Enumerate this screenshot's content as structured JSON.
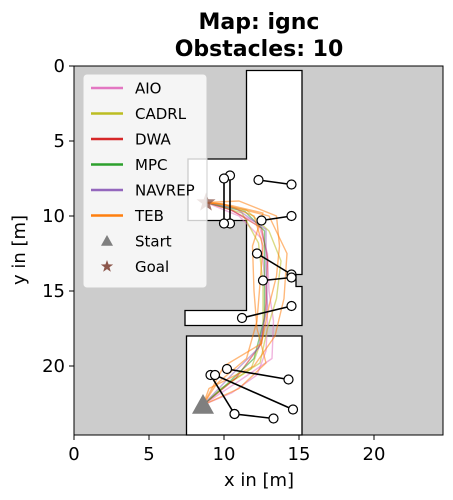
{
  "chart_data": {
    "type": "line",
    "title_line1": "Map: ignc",
    "title_line2": "Obstacles: 10",
    "xlabel": "x in [m]",
    "ylabel": "y in [m]",
    "xlim": [
      0,
      24.6
    ],
    "ylim": [
      24.6,
      0
    ],
    "y_inverted": true,
    "xticks": [
      0,
      5,
      10,
      15,
      20
    ],
    "yticks": [
      0,
      5,
      10,
      15,
      20
    ],
    "background_color": "#cccccc",
    "free_space_color": "#ffffff",
    "free_space_polygon": [
      [
        11.5,
        0.3
      ],
      [
        15.2,
        0.3
      ],
      [
        15.2,
        13.9
      ],
      [
        14.8,
        13.9
      ],
      [
        14.8,
        14.7
      ],
      [
        15.2,
        14.7
      ],
      [
        15.2,
        17.3
      ],
      [
        7.4,
        17.3
      ],
      [
        7.4,
        16.3
      ],
      [
        11.5,
        16.3
      ],
      [
        11.5,
        10.3
      ],
      [
        7.6,
        10.3
      ],
      [
        7.6,
        6.2
      ],
      [
        11.5,
        6.2
      ]
    ],
    "free_space_polygon_2": [
      [
        7.5,
        18.0
      ],
      [
        15.2,
        18.0
      ],
      [
        15.2,
        24.6
      ],
      [
        7.5,
        24.6
      ]
    ],
    "legend": [
      {
        "label": "AIO",
        "color": "#e377c2",
        "marker": "line"
      },
      {
        "label": "CADRL",
        "color": "#bcbd22",
        "marker": "line"
      },
      {
        "label": "DWA",
        "color": "#d62728",
        "marker": "line"
      },
      {
        "label": "MPC",
        "color": "#2ca02c",
        "marker": "line"
      },
      {
        "label": "NAVREP",
        "color": "#9467bd",
        "marker": "line"
      },
      {
        "label": "TEB",
        "color": "#ff7f0e",
        "marker": "line"
      },
      {
        "label": "Start",
        "color": "#7f7f7f",
        "marker": "triangle"
      },
      {
        "label": "Goal",
        "color": "#8c564b",
        "marker": "star"
      }
    ],
    "start": {
      "x": 8.6,
      "y": 22.6
    },
    "goal": {
      "x": 8.8,
      "y": 9.1
    },
    "series": [
      {
        "name": "AIO",
        "color": "#e377c2",
        "points": [
          [
            8.6,
            22.6
          ],
          [
            10.5,
            21.8
          ],
          [
            12.2,
            20.6
          ],
          [
            12.8,
            19.0
          ],
          [
            12.9,
            17.0
          ],
          [
            12.8,
            15.0
          ],
          [
            12.6,
            13.0
          ],
          [
            12.5,
            11.5
          ],
          [
            11.0,
            10.0
          ],
          [
            8.8,
            9.1
          ]
        ]
      },
      {
        "name": "AIO",
        "color": "#e377c2",
        "points": [
          [
            8.6,
            22.6
          ],
          [
            11.0,
            21.0
          ],
          [
            13.2,
            19.5
          ],
          [
            13.3,
            17.0
          ],
          [
            13.0,
            15.0
          ],
          [
            12.9,
            12.5
          ],
          [
            12.3,
            10.5
          ],
          [
            10.0,
            9.4
          ],
          [
            8.8,
            9.1
          ]
        ]
      },
      {
        "name": "CADRL",
        "color": "#bcbd22",
        "points": [
          [
            8.6,
            22.6
          ],
          [
            10.5,
            21.0
          ],
          [
            12.4,
            19.8
          ],
          [
            12.9,
            17.5
          ],
          [
            13.5,
            15.5
          ],
          [
            13.8,
            13.0
          ],
          [
            13.0,
            11.0
          ],
          [
            11.5,
            9.6
          ],
          [
            8.8,
            9.1
          ]
        ]
      },
      {
        "name": "CADRL",
        "color": "#bcbd22",
        "points": [
          [
            8.6,
            22.6
          ],
          [
            9.8,
            21.5
          ],
          [
            11.8,
            20.2
          ],
          [
            12.6,
            18.0
          ],
          [
            12.6,
            14.5
          ],
          [
            12.3,
            11.8
          ],
          [
            11.2,
            9.8
          ],
          [
            8.8,
            9.1
          ]
        ]
      },
      {
        "name": "DWA",
        "color": "#d62728",
        "points": [
          [
            8.6,
            22.6
          ],
          [
            10.8,
            20.8
          ],
          [
            12.5,
            18.5
          ],
          [
            12.8,
            15.8
          ],
          [
            12.9,
            12.8
          ],
          [
            12.5,
            10.8
          ],
          [
            10.5,
            9.6
          ],
          [
            8.8,
            9.1
          ]
        ]
      },
      {
        "name": "MPC",
        "color": "#2ca02c",
        "points": [
          [
            8.6,
            22.6
          ],
          [
            10.2,
            21.2
          ],
          [
            12.0,
            19.5
          ],
          [
            12.7,
            16.8
          ],
          [
            12.7,
            13.5
          ],
          [
            12.7,
            11.0
          ],
          [
            11.4,
            9.7
          ],
          [
            8.8,
            9.1
          ]
        ]
      },
      {
        "name": "NAVREP",
        "color": "#9467bd",
        "points": [
          [
            8.6,
            22.6
          ],
          [
            10.6,
            20.5
          ],
          [
            12.3,
            18.8
          ],
          [
            12.9,
            16.0
          ],
          [
            12.8,
            13.2
          ],
          [
            12.8,
            10.9
          ],
          [
            10.8,
            9.5
          ],
          [
            8.8,
            9.1
          ]
        ]
      },
      {
        "name": "TEB",
        "color": "#ff7f0e",
        "points": [
          [
            8.6,
            22.6
          ],
          [
            9.5,
            21.2
          ],
          [
            11.5,
            19.5
          ],
          [
            12.2,
            17.0
          ],
          [
            12.4,
            14.5
          ],
          [
            12.6,
            12.0
          ],
          [
            12.0,
            10.0
          ],
          [
            10.0,
            9.2
          ],
          [
            8.8,
            9.1
          ]
        ]
      },
      {
        "name": "TEB",
        "color": "#ff7f0e",
        "points": [
          [
            8.6,
            22.6
          ],
          [
            10.0,
            20.0
          ],
          [
            12.5,
            18.5
          ],
          [
            13.0,
            16.0
          ],
          [
            13.5,
            14.0
          ],
          [
            13.7,
            12.0
          ],
          [
            13.5,
            10.0
          ],
          [
            11.0,
            9.0
          ],
          [
            8.8,
            9.1
          ]
        ]
      },
      {
        "name": "TEB",
        "color": "#ff7f0e",
        "points": [
          [
            8.6,
            22.6
          ],
          [
            11.0,
            21.5
          ],
          [
            12.8,
            19.8
          ],
          [
            12.2,
            17.5
          ],
          [
            12.0,
            15.0
          ],
          [
            11.9,
            12.0
          ],
          [
            12.6,
            9.8
          ],
          [
            10.5,
            9.3
          ],
          [
            8.8,
            9.1
          ]
        ]
      },
      {
        "name": "TEB",
        "color": "#ff7f0e",
        "points": [
          [
            8.6,
            22.6
          ],
          [
            9.0,
            21.5
          ],
          [
            12.0,
            20.0
          ],
          [
            13.4,
            18.0
          ],
          [
            14.0,
            15.5
          ],
          [
            14.2,
            12.5
          ],
          [
            13.0,
            10.0
          ],
          [
            9.8,
            9.2
          ],
          [
            8.8,
            9.1
          ]
        ]
      }
    ],
    "obstacles": [
      {
        "from": [
          10.4,
          7.3
        ],
        "to": [
          10.4,
          10.5
        ]
      },
      {
        "from": [
          10.0,
          7.5
        ],
        "to": [
          10.0,
          10.5
        ]
      },
      {
        "from": [
          12.3,
          7.6
        ],
        "to": [
          14.5,
          7.9
        ]
      },
      {
        "from": [
          12.5,
          10.3
        ],
        "to": [
          14.5,
          10.0
        ]
      },
      {
        "from": [
          12.2,
          12.5
        ],
        "to": [
          14.5,
          13.9
        ]
      },
      {
        "from": [
          12.6,
          14.3
        ],
        "to": [
          14.5,
          14.1
        ]
      },
      {
        "from": [
          11.2,
          16.8
        ],
        "to": [
          14.5,
          16.0
        ]
      },
      {
        "from": [
          10.2,
          20.2
        ],
        "to": [
          14.3,
          20.9
        ]
      },
      {
        "from": [
          9.1,
          20.6
        ],
        "to": [
          10.7,
          23.2
        ]
      },
      {
        "from": [
          10.7,
          23.2
        ],
        "to": [
          13.3,
          23.5
        ]
      },
      {
        "from": [
          9.4,
          20.6
        ],
        "to": [
          14.6,
          22.9
        ]
      }
    ]
  }
}
